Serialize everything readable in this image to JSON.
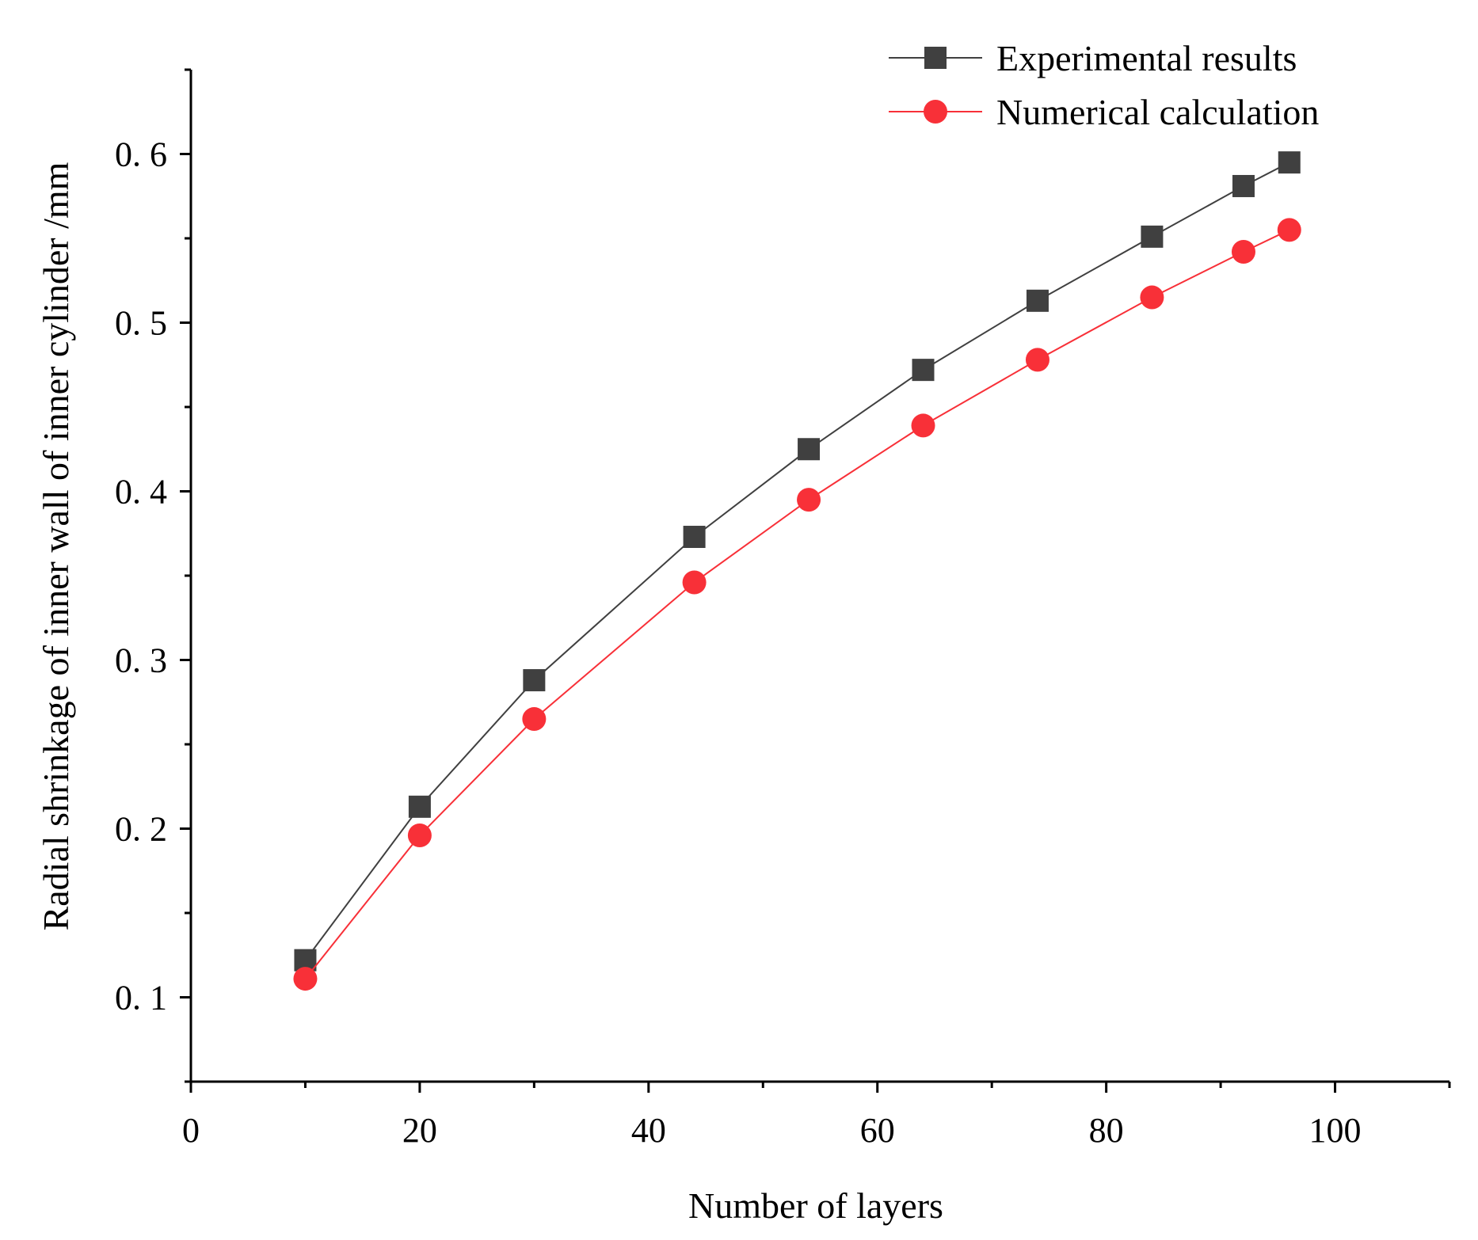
{
  "chart_data": {
    "type": "line",
    "title": "",
    "xlabel": "Number of layers",
    "ylabel": "Radial shrinkage of inner wall of inner cylinder /mm",
    "xlim": [
      0,
      110
    ],
    "ylim": [
      0.05,
      0.65
    ],
    "x_ticks": [
      0,
      20,
      40,
      60,
      80,
      100
    ],
    "x_tick_labels": [
      "0",
      "20",
      "40",
      "60",
      "80",
      "100"
    ],
    "x_minor_ticks": [
      10,
      30,
      50,
      70,
      90,
      110
    ],
    "y_ticks": [
      0.1,
      0.2,
      0.3,
      0.4,
      0.5,
      0.6
    ],
    "y_tick_labels": [
      "0. 1",
      "0. 2",
      "0. 3",
      "0. 4",
      "0. 5",
      "0. 6"
    ],
    "y_minor_ticks": [
      0.05,
      0.15,
      0.25,
      0.35,
      0.45,
      0.55,
      0.65
    ],
    "grid": false,
    "legend_position": "top-right",
    "series": [
      {
        "name": "Experimental results",
        "marker": "square",
        "color": "#404040",
        "line_color": "#404040",
        "x": [
          10,
          20,
          30,
          44,
          54,
          64,
          74,
          84,
          92,
          96
        ],
        "values": [
          0.122,
          0.213,
          0.288,
          0.373,
          0.425,
          0.472,
          0.513,
          0.551,
          0.581,
          0.595
        ]
      },
      {
        "name": "Numerical calculation",
        "marker": "circle",
        "color": "#f83038",
        "line_color": "#f83038",
        "x": [
          10,
          20,
          30,
          44,
          54,
          64,
          74,
          84,
          92,
          96
        ],
        "values": [
          0.111,
          0.196,
          0.265,
          0.346,
          0.395,
          0.439,
          0.478,
          0.515,
          0.542,
          0.555
        ]
      }
    ]
  }
}
